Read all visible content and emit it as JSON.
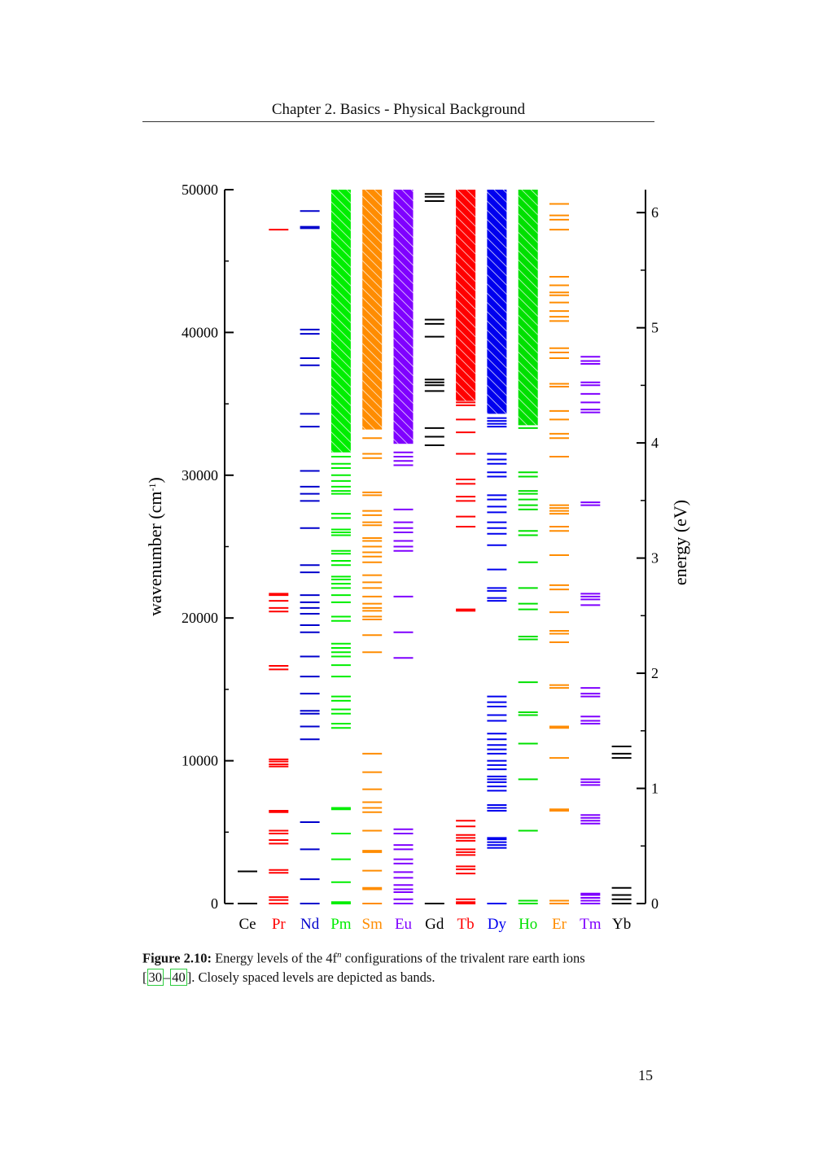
{
  "header": {
    "running_title": "Chapter 2.  Basics - Physical Background"
  },
  "caption": {
    "label": "Figure 2.10:",
    "text_before_sup": " Energy levels of the 4f",
    "superscript": "n",
    "text_after_sup": " configurations of the trivalent rare earth ions",
    "cite_open": "[",
    "cite_a": "30",
    "cite_dash": "–",
    "cite_b": "40",
    "cite_close": "]",
    "text_end": ". Closely spaced levels are depicted as bands."
  },
  "page_number": "15",
  "chart_data": {
    "type": "energy-level-diagram",
    "title": "",
    "ylabel": "wavenumber (cm",
    "ylabel_sup": "-1",
    "ylabel_close": ")",
    "y2label": "energy (eV)",
    "ylim": [
      0,
      50000
    ],
    "yticks": [
      0,
      10000,
      20000,
      30000,
      40000,
      50000
    ],
    "y2ticks": [
      0,
      1,
      2,
      3,
      4,
      5,
      6
    ],
    "y2_conversion_cm_per_eV": 8065.5,
    "grid": false,
    "legend": "none",
    "ions": [
      {
        "name": "Ce",
        "color": "#000000",
        "band_from": null,
        "levels": [
          0,
          2250
        ]
      },
      {
        "name": "Pr",
        "color": "#ff0000",
        "band_from": null,
        "levels": [
          0,
          250,
          450,
          2150,
          2350,
          4200,
          4450,
          4900,
          5100,
          6400,
          6500,
          9600,
          9750,
          9950,
          10100,
          16400,
          16650,
          20450,
          20700,
          21200,
          21600,
          21700,
          47200
        ]
      },
      {
        "name": "Nd",
        "color": "#0000cc",
        "band_from": null,
        "levels": [
          0,
          1700,
          3800,
          5700,
          11500,
          12400,
          13300,
          13500,
          14700,
          15900,
          17300,
          19000,
          19500,
          20300,
          20700,
          21100,
          21600,
          23200,
          23700,
          26300,
          28200,
          28700,
          29200,
          30300,
          33400,
          34300,
          37700,
          38200,
          39900,
          40200,
          47300,
          47400,
          48500
        ]
      },
      {
        "name": "Pm",
        "color": "#00ee00",
        "band_from": 31600,
        "levels": [
          0,
          100,
          1500,
          3100,
          4900,
          6600,
          6700,
          12300,
          12600,
          13300,
          13600,
          14200,
          14500,
          15900,
          16700,
          17300,
          17600,
          17900,
          18200,
          19800,
          20100,
          21100,
          21600,
          22100,
          22400,
          22700,
          22900,
          23700,
          24000,
          24500,
          24700,
          25800,
          26000,
          26200,
          27000,
          27300,
          28700,
          28900,
          29200,
          29600,
          30000,
          30500,
          30800,
          31300
        ]
      },
      {
        "name": "Sm",
        "color": "#ff8c00",
        "band_from": 33200,
        "levels": [
          0,
          1000,
          1100,
          2300,
          3600,
          3700,
          5100,
          6400,
          6700,
          7100,
          8000,
          9200,
          10500,
          17600,
          18800,
          19900,
          20100,
          20500,
          20700,
          21000,
          21500,
          22100,
          22500,
          23000,
          23900,
          24300,
          24600,
          25000,
          25400,
          25600,
          26500,
          26700,
          27200,
          27500,
          28600,
          28800,
          31200,
          31500,
          32600
        ]
      },
      {
        "name": "Eu",
        "color": "#7f00ff",
        "band_from": 32200,
        "levels": [
          0,
          300,
          800,
          1000,
          1300,
          1800,
          2200,
          2800,
          3100,
          3800,
          4100,
          4900,
          5200,
          17200,
          19000,
          21500,
          24700,
          25000,
          25400,
          26000,
          26300,
          26700,
          27600,
          30700,
          31000,
          31300,
          31600
        ]
      },
      {
        "name": "Gd",
        "color": "#000000",
        "band_from": null,
        "levels": [
          0,
          32100,
          32700,
          33300,
          35900,
          36300,
          36500,
          36700,
          39700,
          40600,
          40900,
          49200,
          49500,
          49700
        ]
      },
      {
        "name": "Tb",
        "color": "#ff0000",
        "band_from": 35200,
        "levels": [
          0,
          100,
          300,
          2100,
          2400,
          2600,
          3400,
          3600,
          3800,
          4400,
          4600,
          4800,
          5400,
          5800,
          20500,
          20600,
          26400,
          27100,
          28200,
          28500,
          29400,
          29700,
          31500,
          33000,
          33900,
          34900,
          35100
        ]
      },
      {
        "name": "Dy",
        "color": "#0000ee",
        "band_from": 34300,
        "levels": [
          0,
          3900,
          4100,
          4300,
          4500,
          4600,
          6500,
          6700,
          6900,
          7900,
          8200,
          8500,
          8700,
          8900,
          9400,
          9700,
          10000,
          10500,
          10800,
          11100,
          11500,
          11900,
          12800,
          13200,
          13800,
          14100,
          14500,
          21200,
          21400,
          21900,
          22100,
          23400,
          25100,
          25900,
          26300,
          26700,
          27400,
          27800,
          28300,
          28600,
          29900,
          30200,
          30800,
          31100,
          31500,
          33400,
          33600,
          33800,
          34000
        ]
      },
      {
        "name": "Ho",
        "color": "#00e000",
        "band_from": 33500,
        "levels": [
          0,
          200,
          5100,
          8700,
          11200,
          13200,
          13400,
          15500,
          18500,
          18700,
          20600,
          21000,
          22100,
          23900,
          25800,
          26100,
          27600,
          27900,
          28300,
          28700,
          28900,
          29900,
          30200,
          33300
        ]
      },
      {
        "name": "Er",
        "color": "#ff8c00",
        "band_from": null,
        "levels": [
          0,
          200,
          6500,
          6600,
          10200,
          12300,
          12400,
          15100,
          15300,
          18300,
          18900,
          19100,
          20400,
          22000,
          22300,
          24400,
          26100,
          26400,
          27300,
          27500,
          27700,
          27900,
          31300,
          32600,
          32900,
          33900,
          34500,
          36200,
          36400,
          38200,
          38600,
          38900,
          40800,
          41100,
          41500,
          42100,
          42600,
          42800,
          43300,
          43900,
          47200,
          47900,
          48200,
          49000
        ]
      },
      {
        "name": "Tm",
        "color": "#7f00ff",
        "band_from": null,
        "levels": [
          0,
          200,
          400,
          600,
          700,
          5600,
          5800,
          6000,
          6200,
          8300,
          8500,
          8700,
          12600,
          12800,
          13100,
          14500,
          14700,
          15100,
          20900,
          21300,
          21500,
          21700,
          27900,
          28100,
          34400,
          34600,
          35100,
          35700,
          36300,
          36500,
          37800,
          38000,
          38300
        ]
      },
      {
        "name": "Yb",
        "color": "#000000",
        "band_from": null,
        "levels": [
          0,
          300,
          600,
          1100,
          10200,
          10500,
          11000
        ]
      }
    ]
  }
}
